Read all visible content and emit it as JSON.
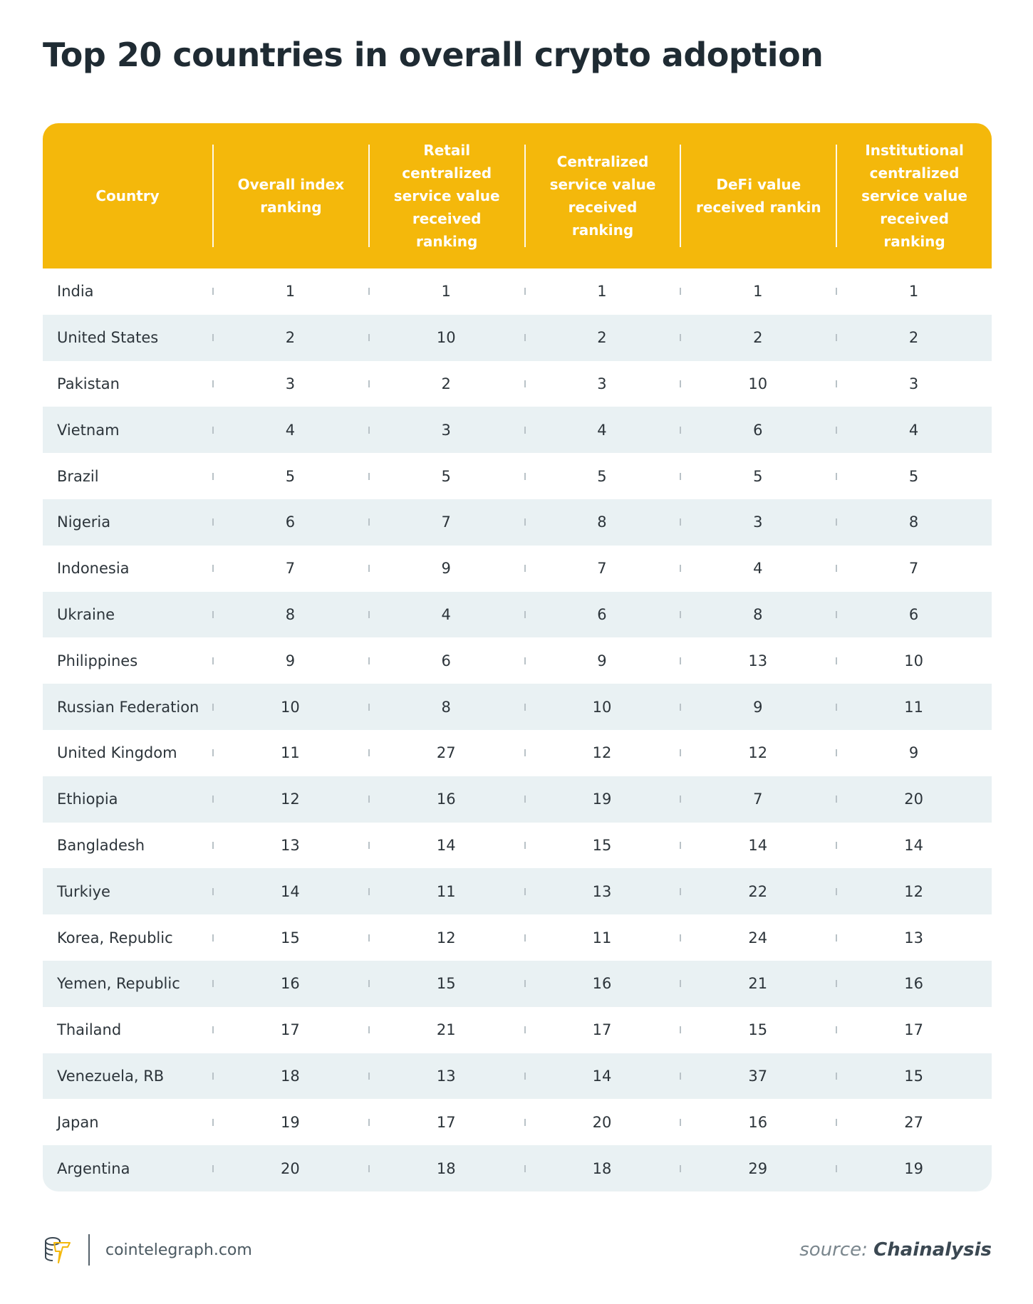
{
  "title": "Top 20 countries in overall crypto adoption",
  "table": {
    "columns": [
      "Country",
      "Overall index ranking",
      "Retail centralized service value received ranking",
      "Centralized service value received ranking",
      "DeFi value received rankin",
      "Institutional centralized service value received ranking"
    ],
    "rows": [
      [
        "India",
        "1",
        "1",
        "1",
        "1",
        "1"
      ],
      [
        "United States",
        "2",
        "10",
        "2",
        "2",
        "2"
      ],
      [
        "Pakistan",
        "3",
        "2",
        "3",
        "10",
        "3"
      ],
      [
        "Vietnam",
        "4",
        "3",
        "4",
        "6",
        "4"
      ],
      [
        "Brazil",
        "5",
        "5",
        "5",
        "5",
        "5"
      ],
      [
        "Nigeria",
        "6",
        "7",
        "8",
        "3",
        "8"
      ],
      [
        "Indonesia",
        "7",
        "9",
        "7",
        "4",
        "7"
      ],
      [
        "Ukraine",
        "8",
        "4",
        "6",
        "8",
        "6"
      ],
      [
        "Philippines",
        "9",
        "6",
        "9",
        "13",
        "10"
      ],
      [
        "Russian Federation",
        "10",
        "8",
        "10",
        "9",
        "11"
      ],
      [
        "United Kingdom",
        "11",
        "27",
        "12",
        "12",
        "9"
      ],
      [
        "Ethiopia",
        "12",
        "16",
        "19",
        "7",
        "20"
      ],
      [
        "Bangladesh",
        "13",
        "14",
        "15",
        "14",
        "14"
      ],
      [
        "Turkiye",
        "14",
        "11",
        "13",
        "22",
        "12"
      ],
      [
        "Korea, Republic",
        "15",
        "12",
        "11",
        "24",
        "13"
      ],
      [
        "Yemen, Republic",
        "16",
        "15",
        "16",
        "21",
        "16"
      ],
      [
        "Thailand",
        "17",
        "21",
        "17",
        "15",
        "17"
      ],
      [
        "Venezuela, RB",
        "18",
        "13",
        "14",
        "37",
        "15"
      ],
      [
        "Japan",
        "19",
        "17",
        "20",
        "16",
        "27"
      ],
      [
        "Argentina",
        "20",
        "18",
        "18",
        "29",
        "19"
      ]
    ]
  },
  "footer": {
    "site": "cointelegraph.com",
    "logo_icon": "cointelegraph-logo-icon",
    "source_prefix": "source:",
    "source_name": "Chainalysis"
  },
  "colors": {
    "header_bg": "#f4b80b",
    "stripe_bg": "#e9f1f3",
    "title": "#1f2b33"
  }
}
